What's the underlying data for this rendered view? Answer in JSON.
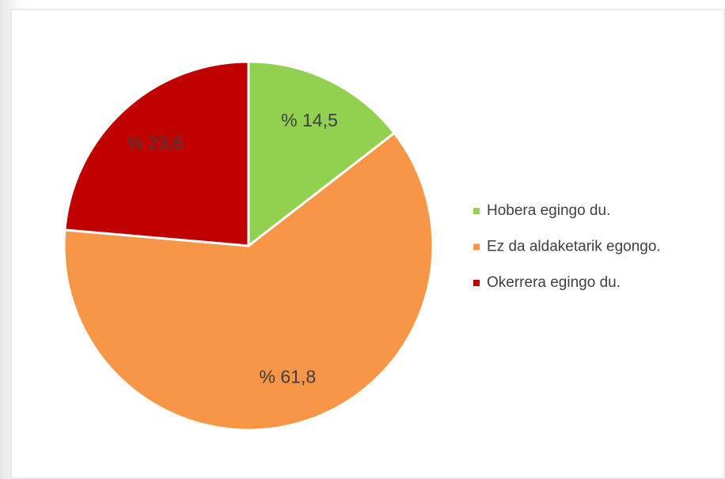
{
  "chart_data": {
    "type": "pie",
    "categories": [
      "Hobera egingo du.",
      "Ez da aldaketarik egongo.",
      "Okerrera egingo du."
    ],
    "values": [
      14.5,
      61.8,
      23.6
    ],
    "value_labels": [
      "% 14,5",
      "% 61,8",
      "% 23,6"
    ],
    "colors": [
      "#92d050",
      "#f79646",
      "#c00000"
    ],
    "legend": "right"
  }
}
